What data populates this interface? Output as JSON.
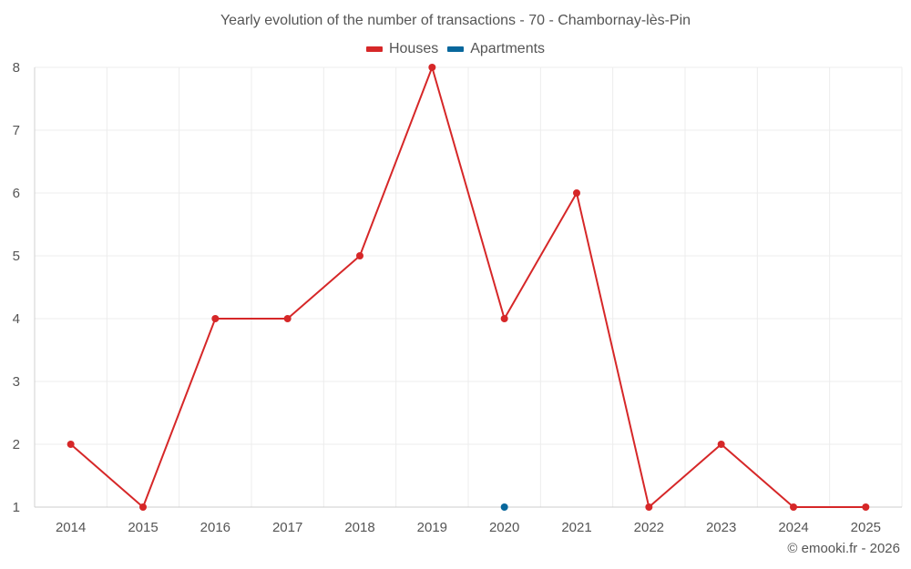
{
  "chart_data": {
    "type": "line",
    "title": "Yearly evolution of the number of transactions - 70 - Chambornay-lès-Pin",
    "x": [
      "2014",
      "2015",
      "2016",
      "2017",
      "2018",
      "2019",
      "2020",
      "2021",
      "2022",
      "2023",
      "2024",
      "2025"
    ],
    "ylim": [
      1,
      8
    ],
    "yticks": [
      1,
      2,
      3,
      4,
      5,
      6,
      7,
      8
    ],
    "grid": true,
    "legend_position": "top-center",
    "series": [
      {
        "name": "Houses",
        "color": "#d62728",
        "values": [
          2,
          1,
          4,
          4,
          5,
          8,
          4,
          6,
          1,
          2,
          1,
          1
        ]
      },
      {
        "name": "Apartments",
        "color": "#08679c",
        "values": [
          null,
          null,
          null,
          null,
          null,
          null,
          1,
          null,
          null,
          null,
          null,
          null
        ]
      }
    ]
  },
  "credit": "© emooki.fr - 2026"
}
